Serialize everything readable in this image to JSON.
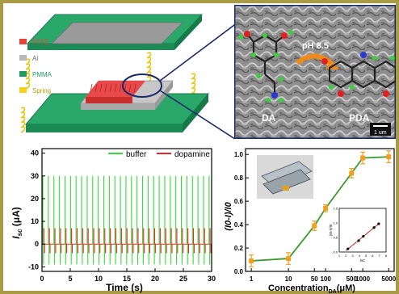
{
  "panel_a": {
    "legend": [
      {
        "label": "PTFE",
        "color": "#e8403a"
      },
      {
        "label": "Al",
        "color": "#b8b8b8"
      },
      {
        "label": "PMMA",
        "color": "#1f9c62"
      },
      {
        "label": "Spring",
        "color": "#f2d21a"
      }
    ]
  },
  "panel_b": {
    "reactant": "DA",
    "product": "PDA",
    "condition": "pH 8.5",
    "scale_bar": "1 um"
  },
  "chart_data": [
    {
      "type": "line",
      "ylabel_main": "I",
      "ylabel_sub": "sc",
      "ylabel_unit": " (μA)",
      "xlabel": "Time (s)",
      "xlim": [
        0,
        30
      ],
      "ylim": [
        -12,
        42
      ],
      "xticks": [
        0,
        5,
        10,
        15,
        20,
        25,
        30
      ],
      "yticks": [
        -10,
        0,
        10,
        20,
        30,
        40
      ],
      "grid": false,
      "legend_position": "top-right",
      "series": [
        {
          "name": "buffer",
          "color": "#33dd33",
          "pulse_period_s": 0.98,
          "peak": 30,
          "trough": -9
        },
        {
          "name": "dopamine",
          "color": "#ee2222",
          "pulse_period_s": 0.98,
          "peak": 7,
          "trough": -4
        }
      ]
    },
    {
      "type": "line",
      "ylabel": "(I0-I)/I0",
      "xlabel_main": "Concentration",
      "xlabel_sub": "DA",
      "xlabel_unit": "(μM)",
      "x_scale": "log",
      "categories": [
        "1",
        "10",
        "50",
        "100",
        "500",
        "1000",
        "5000"
      ],
      "x": [
        1,
        10,
        50,
        100,
        500,
        1000,
        5000
      ],
      "values": [
        0.09,
        0.11,
        0.39,
        0.54,
        0.84,
        0.97,
        0.98
      ],
      "errors": [
        0.05,
        0.05,
        0.04,
        0.03,
        0.04,
        0.05,
        0.05
      ],
      "ylim": [
        0,
        1.05
      ],
      "yticks": [
        "0.0",
        "0.2",
        "0.4",
        "0.6",
        "0.8",
        "1.0"
      ],
      "line_color": "#3a9a2a",
      "marker_color": "#f0a020",
      "inset": {
        "type": "scatter",
        "ylabel": "(I0-I)/I0",
        "xlabel": "lnC",
        "x": [
          2.3,
          3.9,
          4.6,
          6.2,
          6.9
        ],
        "y": [
          0.11,
          0.39,
          0.54,
          0.84,
          0.97
        ],
        "xticks": [
          "1",
          "2",
          "3",
          "4",
          "5",
          "6",
          "7",
          "8"
        ],
        "yticks": [
          "0.0",
          "0.5",
          "1.0",
          "1.5"
        ],
        "fit_color": "#e02020"
      }
    }
  ]
}
